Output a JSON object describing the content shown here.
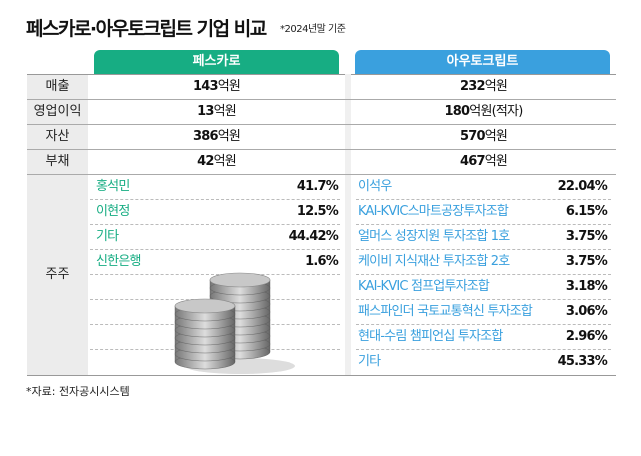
{
  "title": "페스카로·아우토크립트 기업 비교",
  "note": "*2024년말 기준",
  "colors": {
    "pescaro": "#17ad83",
    "autocrypt": "#3aa0de"
  },
  "companies": [
    "페스카로",
    "아우토크립트"
  ],
  "rows": [
    {
      "label": "매출",
      "a_num": "143",
      "a_unit": "억원",
      "b_num": "232",
      "b_unit": "억원"
    },
    {
      "label": "영업이익",
      "a_num": "13",
      "a_unit": "억원",
      "b_num": "180",
      "b_unit": "억원(적자)"
    },
    {
      "label": "자산",
      "a_num": "386",
      "a_unit": "억원",
      "b_num": "570",
      "b_unit": "억원"
    },
    {
      "label": "부채",
      "a_num": "42",
      "a_unit": "억원",
      "b_num": "467",
      "b_unit": "억원"
    }
  ],
  "shareholders_label": "주주",
  "a_shareholders": [
    {
      "name": "홍석민",
      "pct": "41.7%"
    },
    {
      "name": "이현정",
      "pct": "12.5%"
    },
    {
      "name": "기타",
      "pct": "44.42%"
    },
    {
      "name": "신한은행",
      "pct": "1.6%"
    }
  ],
  "b_shareholders": [
    {
      "name": "이석우",
      "pct": "22.04%"
    },
    {
      "name": "KAI-KVIC스마트공장투자조합",
      "pct": "6.15%"
    },
    {
      "name": "얼머스 성장지원 투자조합 1호",
      "pct": "3.75%"
    },
    {
      "name": "케이비 지식재산 투자조합 2호",
      "pct": "3.75%"
    },
    {
      "name": "KAI-KVIC 점프업투자조합",
      "pct": "3.18%"
    },
    {
      "name": "패스파인더 국토교통혁신 투자조합",
      "pct": "3.06%"
    },
    {
      "name": "현대-수림 챔피언십 투자조합",
      "pct": "2.96%"
    },
    {
      "name": "기타",
      "pct": "45.33%"
    }
  ],
  "source": "*자료: 전자공시시스템"
}
